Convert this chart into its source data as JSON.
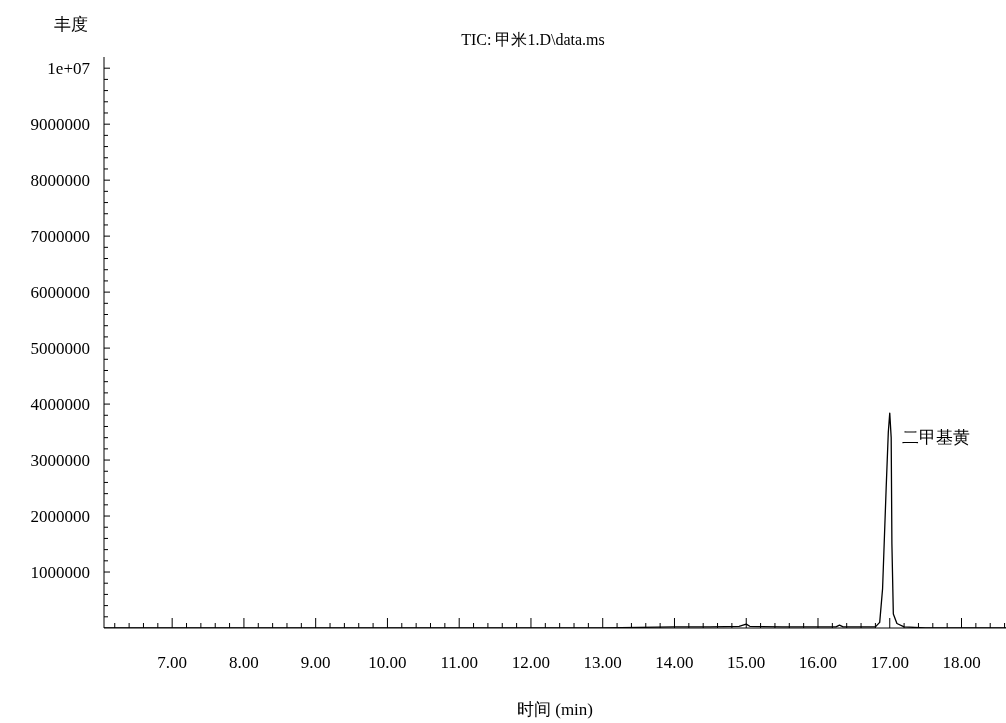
{
  "chart_data": {
    "type": "line",
    "title": "TIC: 甲米1.D\\data.ms",
    "xlabel": "时间 (min)",
    "ylabel": "丰度",
    "color": "#000000",
    "marker": "none",
    "x": [
      6.05,
      7,
      8,
      9,
      10,
      11,
      12,
      12.5,
      13,
      13.5,
      14,
      14.5,
      14.9,
      15.0,
      15.05,
      15.5,
      16.0,
      16.25,
      16.3,
      16.35,
      16.6,
      16.8,
      16.86,
      16.9,
      16.95,
      16.98,
      17.0,
      17.02,
      17.03,
      17.05,
      17.1,
      17.2,
      17.5,
      18,
      18.62
    ],
    "values": [
      0,
      0,
      0,
      0,
      0,
      0,
      0,
      0,
      0,
      10000,
      20000,
      20000,
      30000,
      70000,
      30000,
      20000,
      20000,
      20000,
      50000,
      20000,
      20000,
      20000,
      100000,
      700000,
      2500000,
      3500000,
      3840000,
      3400000,
      1500000,
      250000,
      80000,
      20000,
      0,
      0,
      0
    ],
    "xlim": [
      6.05,
      18.62
    ],
    "ylim": [
      0,
      10200000
    ],
    "xticks": [
      {
        "value": 6.2,
        "label": null
      },
      {
        "value": 6.4,
        "label": null
      },
      {
        "value": 6.6,
        "label": null
      },
      {
        "value": 6.8,
        "label": null
      },
      {
        "value": 7,
        "label": "7.00"
      },
      {
        "value": 7.2,
        "label": null
      },
      {
        "value": 7.4,
        "label": null
      },
      {
        "value": 7.6,
        "label": null
      },
      {
        "value": 7.8,
        "label": null
      },
      {
        "value": 8,
        "label": "8.00"
      },
      {
        "value": 8.2,
        "label": null
      },
      {
        "value": 8.4,
        "label": null
      },
      {
        "value": 8.6,
        "label": null
      },
      {
        "value": 8.8,
        "label": null
      },
      {
        "value": 9,
        "label": "9.00"
      },
      {
        "value": 9.2,
        "label": null
      },
      {
        "value": 9.4,
        "label": null
      },
      {
        "value": 9.6,
        "label": null
      },
      {
        "value": 9.8,
        "label": null
      },
      {
        "value": 10,
        "label": "10.00"
      },
      {
        "value": 10.2,
        "label": null
      },
      {
        "value": 10.4,
        "label": null
      },
      {
        "value": 10.6,
        "label": null
      },
      {
        "value": 10.8,
        "label": null
      },
      {
        "value": 11,
        "label": "11.00"
      },
      {
        "value": 11.2,
        "label": null
      },
      {
        "value": 11.4,
        "label": null
      },
      {
        "value": 11.6,
        "label": null
      },
      {
        "value": 11.8,
        "label": null
      },
      {
        "value": 12,
        "label": "12.00"
      },
      {
        "value": 12.2,
        "label": null
      },
      {
        "value": 12.4,
        "label": null
      },
      {
        "value": 12.6,
        "label": null
      },
      {
        "value": 12.8,
        "label": null
      },
      {
        "value": 13,
        "label": "13.00"
      },
      {
        "value": 13.2,
        "label": null
      },
      {
        "value": 13.4,
        "label": null
      },
      {
        "value": 13.6,
        "label": null
      },
      {
        "value": 13.8,
        "label": null
      },
      {
        "value": 14,
        "label": "14.00"
      },
      {
        "value": 14.2,
        "label": null
      },
      {
        "value": 14.4,
        "label": null
      },
      {
        "value": 14.6,
        "label": null
      },
      {
        "value": 14.8,
        "label": null
      },
      {
        "value": 15,
        "label": "15.00"
      },
      {
        "value": 15.2,
        "label": null
      },
      {
        "value": 15.4,
        "label": null
      },
      {
        "value": 15.6,
        "label": null
      },
      {
        "value": 15.8,
        "label": null
      },
      {
        "value": 16,
        "label": "16.00"
      },
      {
        "value": 16.2,
        "label": null
      },
      {
        "value": 16.4,
        "label": null
      },
      {
        "value": 16.6,
        "label": null
      },
      {
        "value": 16.8,
        "label": null
      },
      {
        "value": 17,
        "label": "17.00"
      },
      {
        "value": 17.2,
        "label": null
      },
      {
        "value": 17.4,
        "label": null
      },
      {
        "value": 17.6,
        "label": null
      },
      {
        "value": 17.8,
        "label": null
      },
      {
        "value": 18,
        "label": "18.00"
      },
      {
        "value": 18.2,
        "label": null
      },
      {
        "value": 18.4,
        "label": null
      },
      {
        "value": 18.6,
        "label": null
      }
    ],
    "yticks": [
      {
        "value": 200000,
        "label": null
      },
      {
        "value": 400000,
        "label": null
      },
      {
        "value": 600000,
        "label": null
      },
      {
        "value": 800000,
        "label": null
      },
      1000000,
      {
        "value": 1200000,
        "label": null
      },
      {
        "value": 1400000,
        "label": null
      },
      {
        "value": 1600000,
        "label": null
      },
      {
        "value": 1800000,
        "label": null
      },
      2000000,
      {
        "value": 2200000,
        "label": null
      },
      {
        "value": 2400000,
        "label": null
      },
      {
        "value": 2600000,
        "label": null
      },
      {
        "value": 2800000,
        "label": null
      },
      3000000,
      {
        "value": 3200000,
        "label": null
      },
      {
        "value": 3400000,
        "label": null
      },
      {
        "value": 3600000,
        "label": null
      },
      {
        "value": 3800000,
        "label": null
      },
      4000000,
      {
        "value": 4200000,
        "label": null
      },
      {
        "value": 4400000,
        "label": null
      },
      {
        "value": 4600000,
        "label": null
      },
      {
        "value": 4800000,
        "label": null
      },
      5000000,
      {
        "value": 5200000,
        "label": null
      },
      {
        "value": 5400000,
        "label": null
      },
      {
        "value": 5600000,
        "label": null
      },
      {
        "value": 5800000,
        "label": null
      },
      6000000,
      {
        "value": 6200000,
        "label": null
      },
      {
        "value": 6400000,
        "label": null
      },
      {
        "value": 6600000,
        "label": null
      },
      {
        "value": 6800000,
        "label": null
      },
      7000000,
      {
        "value": 7200000,
        "label": null
      },
      {
        "value": 7400000,
        "label": null
      },
      {
        "value": 7600000,
        "label": null
      },
      {
        "value": 7800000,
        "label": null
      },
      8000000,
      {
        "value": 8200000,
        "label": null
      },
      {
        "value": 8400000,
        "label": null
      },
      {
        "value": 8600000,
        "label": null
      },
      {
        "value": 8800000,
        "label": null
      },
      9000000,
      {
        "value": 9200000,
        "label": null
      },
      {
        "value": 9400000,
        "label": null
      },
      {
        "value": 9600000,
        "label": null
      },
      {
        "value": 9800000,
        "label": null
      },
      {
        "value": 10000000,
        "label": "1e+07"
      }
    ],
    "annotations": [
      {
        "text": "二甲基黄",
        "x": 17.0,
        "y": 3840000
      }
    ]
  }
}
